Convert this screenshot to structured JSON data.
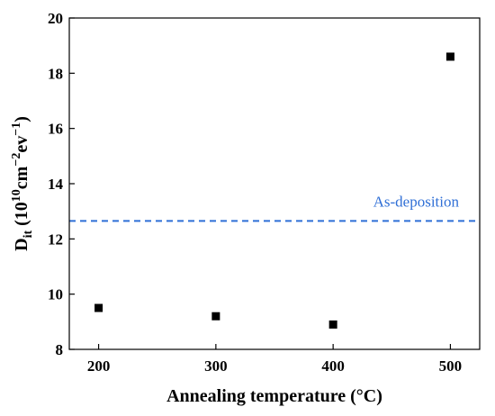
{
  "chart_data": {
    "type": "scatter",
    "xlabel": "Annealing temperature (°C)",
    "ylabel": {
      "base": "D",
      "base_sub": "it",
      "open": " (10",
      "exp1": "10",
      "mid1": "cm",
      "exp2": "−2",
      "mid2": "ev",
      "exp3": "−1",
      "close": ")"
    },
    "xlim": [
      175,
      525
    ],
    "ylim": [
      8,
      20
    ],
    "x_ticks": [
      200,
      300,
      400,
      500
    ],
    "y_ticks": [
      8,
      10,
      12,
      14,
      16,
      18,
      20
    ],
    "x_tick_labels": [
      "200",
      "300",
      "400",
      "500"
    ],
    "y_tick_labels": [
      "8",
      "10",
      "12",
      "14",
      "16",
      "18",
      "20"
    ],
    "series": [
      {
        "marker": "square",
        "color": "#000000",
        "points": [
          {
            "x": 200,
            "y": 9.5
          },
          {
            "x": 300,
            "y": 9.2
          },
          {
            "x": 400,
            "y": 8.9
          },
          {
            "x": 500,
            "y": 18.6
          }
        ]
      }
    ],
    "reference_line": {
      "label": "As-deposition",
      "y": 12.65,
      "style": "dashed",
      "color": "#2f6fd6"
    },
    "grid": false
  }
}
